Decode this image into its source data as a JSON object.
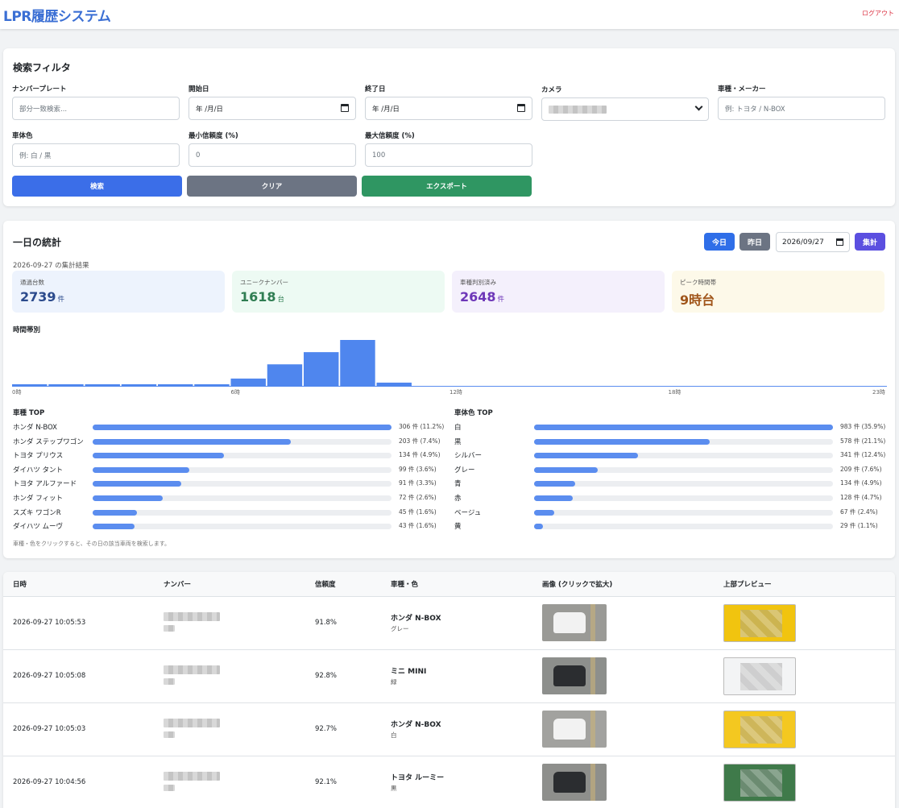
{
  "header": {
    "title": "LPR履歴システム",
    "logout": "ログアウト"
  },
  "filter": {
    "title": "検索フィルタ",
    "plate": {
      "label": "ナンバープレート",
      "placeholder": "部分一致検索..."
    },
    "start": {
      "label": "開始日",
      "value": "年 /月/日"
    },
    "end": {
      "label": "終了日",
      "value": "年 /月/日"
    },
    "camera": {
      "label": "カメラ"
    },
    "model": {
      "label": "車種・メーカー",
      "placeholder": "例: トヨタ / N-BOX"
    },
    "color": {
      "label": "車体色",
      "placeholder": "例: 白 / 黒"
    },
    "min_conf": {
      "label": "最小信頼度 (%)",
      "placeholder": "0"
    },
    "max_conf": {
      "label": "最大信頼度 (%)",
      "placeholder": "100"
    },
    "search_btn": "検索",
    "clear_btn": "クリア",
    "export_btn": "エクスポート"
  },
  "stats": {
    "title": "一日の統計",
    "today_btn": "今日",
    "yesterday_btn": "昨日",
    "date": "2026/09/27",
    "aggregate_btn": "集計",
    "result_caption": "2026-09-27 の集計結果",
    "cards": [
      {
        "label": "通過台数",
        "value": "2739",
        "unit": "件",
        "bg": "#edf3fd",
        "fg": "#2b4a8c"
      },
      {
        "label": "ユニークナンバー",
        "value": "1618",
        "unit": "台",
        "bg": "#edfaf3",
        "fg": "#2f7d52"
      },
      {
        "label": "車種判別済み",
        "value": "2648",
        "unit": "件",
        "bg": "#f4f0fc",
        "fg": "#6d36b8"
      },
      {
        "label": "ピーク時間帯",
        "value": "9時台",
        "unit": "",
        "bg": "#fdf9e9",
        "fg": "#a0551a"
      }
    ],
    "hourly_title": "時間帯別",
    "hour_labels": [
      "0時",
      "6時",
      "12時",
      "18時",
      "23時"
    ],
    "hourly": [
      1,
      1,
      1,
      1,
      1,
      1,
      4,
      11,
      17,
      23,
      2,
      0,
      0,
      0,
      0,
      0,
      0,
      0,
      0,
      0,
      0,
      0,
      0,
      0
    ],
    "hourly_max": 23,
    "model_title": "車種 TOP",
    "model_rank": [
      {
        "name": "ホンダ N-BOX",
        "value": "306 件 (11.2%)",
        "ratio": 1.0
      },
      {
        "name": "ホンダ ステップワゴン",
        "value": "203 件 (7.4%)",
        "ratio": 0.663
      },
      {
        "name": "トヨタ プリウス",
        "value": "134 件 (4.9%)",
        "ratio": 0.438
      },
      {
        "name": "ダイハツ タント",
        "value": "99 件 (3.6%)",
        "ratio": 0.324
      },
      {
        "name": "トヨタ アルファード",
        "value": "91 件 (3.3%)",
        "ratio": 0.297
      },
      {
        "name": "ホンダ フィット",
        "value": "72 件 (2.6%)",
        "ratio": 0.235
      },
      {
        "name": "スズキ ワゴンR",
        "value": "45 件 (1.6%)",
        "ratio": 0.147
      },
      {
        "name": "ダイハツ ムーヴ",
        "value": "43 件 (1.6%)",
        "ratio": 0.141
      }
    ],
    "color_title": "車体色 TOP",
    "color_rank": [
      {
        "name": "白",
        "value": "983 件 (35.9%)",
        "ratio": 1.0
      },
      {
        "name": "黒",
        "value": "578 件 (21.1%)",
        "ratio": 0.588
      },
      {
        "name": "シルバー",
        "value": "341 件 (12.4%)",
        "ratio": 0.347
      },
      {
        "name": "グレー",
        "value": "209 件 (7.6%)",
        "ratio": 0.213
      },
      {
        "name": "青",
        "value": "134 件 (4.9%)",
        "ratio": 0.136
      },
      {
        "name": "赤",
        "value": "128 件 (4.7%)",
        "ratio": 0.13
      },
      {
        "name": "ベージュ",
        "value": "67 件 (2.4%)",
        "ratio": 0.068
      },
      {
        "name": "黄",
        "value": "29 件 (1.1%)",
        "ratio": 0.03
      }
    ],
    "note": "車種・色をクリックすると、その日の該当車両を検索します。"
  },
  "table": {
    "columns": [
      "日時",
      "ナンバー",
      "信頼度",
      "車種・色",
      "画像 (クリックで拡大)",
      "上部プレビュー"
    ],
    "rows": [
      {
        "time": "2026-09-27 10:05:53",
        "plate": "",
        "plate_sub": "",
        "conf": "91.8%",
        "model": "ホンダ N-BOX",
        "color": "グレー",
        "thumb": "#9a9a96",
        "preview": "#f1c40f"
      },
      {
        "time": "2026-09-27 10:05:08",
        "plate": "",
        "plate_sub": "",
        "conf": "92.8%",
        "model": "ミニ MINI",
        "color": "緑",
        "thumb": "#8d8f8c",
        "preview": "#f3f4f5"
      },
      {
        "time": "2026-09-27 10:05:03",
        "plate": "",
        "plate_sub": "",
        "conf": "92.7%",
        "model": "ホンダ N-BOX",
        "color": "白",
        "thumb": "#a2a29f",
        "preview": "#f4c820"
      },
      {
        "time": "2026-09-27 10:04:56",
        "plate": "",
        "plate_sub": "",
        "conf": "92.1%",
        "model": "トヨタ ルーミー",
        "color": "黒",
        "thumb": "#8e8f8c",
        "preview": "#3f7a4a"
      }
    ]
  }
}
